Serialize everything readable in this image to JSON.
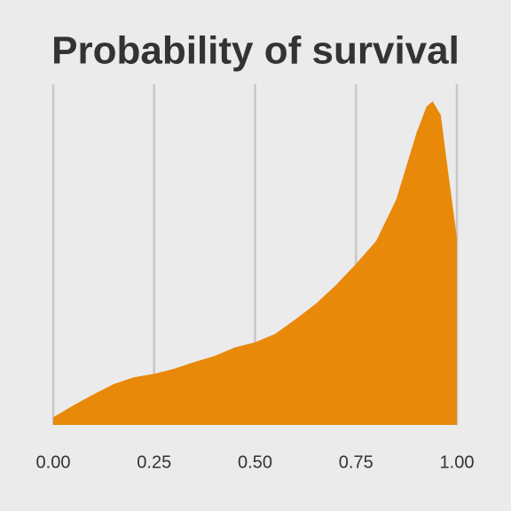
{
  "chart_data": {
    "type": "area",
    "title": "Probability of survival",
    "x": [
      0,
      0.05,
      0.1,
      0.15,
      0.2,
      0.25,
      0.3,
      0.35,
      0.4,
      0.45,
      0.5,
      0.55,
      0.6,
      0.65,
      0.7,
      0.75,
      0.8,
      0.85,
      0.9,
      0.925,
      0.94,
      0.96,
      0.98,
      1
    ],
    "values": [
      0.09,
      0.23,
      0.36,
      0.48,
      0.56,
      0.6,
      0.66,
      0.74,
      0.81,
      0.91,
      0.97,
      1.07,
      1.24,
      1.42,
      1.64,
      1.89,
      2.16,
      2.65,
      3.43,
      3.74,
      3.8,
      3.64,
      2.91,
      2.2
    ],
    "color": "#e8890a",
    "xlim": [
      0,
      1
    ],
    "xticks": [
      {
        "value": 0,
        "label": "0.00"
      },
      {
        "value": 0.25,
        "label": "0.25"
      },
      {
        "value": 0.5,
        "label": "0.50"
      },
      {
        "value": 0.75,
        "label": "0.75"
      },
      {
        "value": 1,
        "label": "1.00"
      }
    ],
    "ylim": [
      0,
      4
    ],
    "grid": true
  }
}
